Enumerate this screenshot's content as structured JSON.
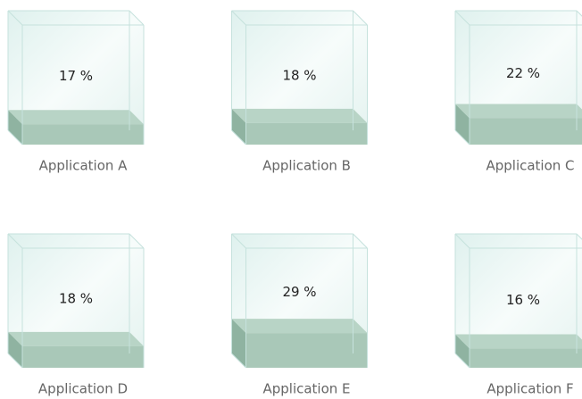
{
  "chart_data": {
    "type": "cube-fill",
    "categories": [
      "Application A",
      "Application B",
      "Application C",
      "Application D",
      "Application E",
      "Application F"
    ],
    "values": [
      17,
      18,
      22,
      18,
      29,
      16
    ],
    "value_labels": [
      "17 %",
      "18 %",
      "22 %",
      "18 %",
      "29 %",
      "16 %"
    ],
    "ylim": [
      0,
      100
    ],
    "color": "#a9c8b8"
  }
}
